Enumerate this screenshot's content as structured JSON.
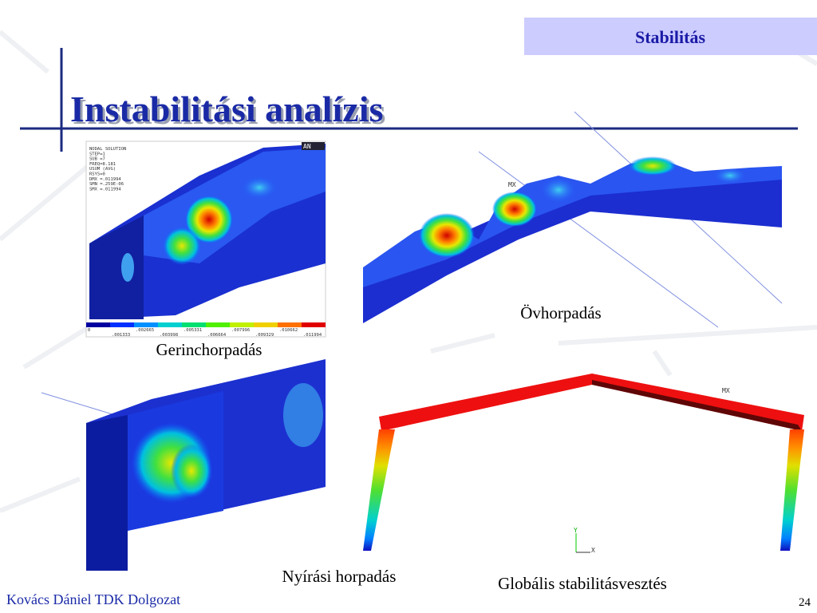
{
  "header": {
    "section": "Stabilitás",
    "title": "Instabilitási analízis"
  },
  "figures": [
    {
      "caption": "Gerinchorpadás",
      "logo": "AN",
      "legend": [
        "NODAL SOLUTION",
        "STEP=1",
        "SUB =7",
        "FREQ=8.181",
        "USUM      (AVG)",
        "RSYS=0",
        "DMX =.011994",
        "SMN =.259E-06",
        "SMX =.011994"
      ],
      "colorbar_labels": [
        "0",
        ".001333",
        ".002665",
        ".003998",
        ".005331",
        ".006664",
        ".007996",
        ".009329",
        ".010662",
        ".011994"
      ]
    },
    {
      "caption": "Övhorpadás",
      "marker": "MX"
    },
    {
      "caption": "Nyírási horpadás"
    },
    {
      "caption": "Globális stabilitásvesztés",
      "marker": "MX",
      "axis_labels": [
        "Y",
        "X"
      ]
    }
  ],
  "footer": {
    "author": "Kovács Dániel TDK Dolgozat",
    "page": "24"
  }
}
